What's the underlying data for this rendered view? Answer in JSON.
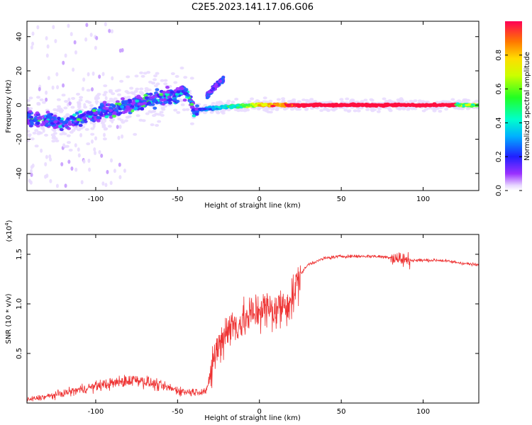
{
  "title": "C2E5.2023.141.17.06.G06",
  "chart_data": [
    {
      "type": "heatmap",
      "xlabel": "Height of straight line (km)",
      "ylabel": "Frequency (Hz)",
      "xlim": [
        -142,
        134
      ],
      "ylim": [
        -50,
        49
      ],
      "xticks": [
        -100,
        -50,
        0,
        50,
        100
      ],
      "yticks": [
        -40,
        -20,
        0,
        20,
        40
      ],
      "colorbar": {
        "label": "Normalized spectral amplitude",
        "range": [
          0,
          1
        ],
        "ticks": [
          "0.0",
          "0.2",
          "0.4",
          "0.6",
          "0.8"
        ],
        "tick_values": [
          0.0,
          0.2,
          0.4,
          0.6,
          0.8
        ]
      },
      "ridge": [
        {
          "x": -140,
          "y": -8
        },
        {
          "x": -120,
          "y": -11
        },
        {
          "x": -100,
          "y": -5
        },
        {
          "x": -80,
          "y": 0
        },
        {
          "x": -60,
          "y": 4
        },
        {
          "x": -45,
          "y": 8
        },
        {
          "x": -40,
          "y": -3
        },
        {
          "x": -30,
          "y": -2
        },
        {
          "x": -20,
          "y": -1
        },
        {
          "x": 0,
          "y": 0
        },
        {
          "x": 50,
          "y": 0
        },
        {
          "x": 100,
          "y": 0
        },
        {
          "x": 134,
          "y": 0
        }
      ],
      "branch": [
        {
          "x": -32,
          "y": 5
        },
        {
          "x": -28,
          "y": 10
        },
        {
          "x": -22,
          "y": 15
        }
      ]
    },
    {
      "type": "line",
      "xlabel": "Height of straight line (km)",
      "ylabel": "SNR (10 * v/v)",
      "multiplier": "(x10",
      "multiplier_exp": "4",
      "multiplier_close": ")",
      "xlim": [
        -142,
        134
      ],
      "ylim": [
        0,
        1.7
      ],
      "xticks": [
        -100,
        -50,
        0,
        50,
        100
      ],
      "yticks": [
        0.5,
        1.0,
        1.5
      ],
      "ytick_labels": [
        "0.5",
        "1.0",
        "1.5"
      ],
      "color": "#ee3333",
      "series": [
        {
          "envelope": [
            {
              "x": -142,
              "y": 0.03
            },
            {
              "x": -125,
              "y": 0.08
            },
            {
              "x": -100,
              "y": 0.17
            },
            {
              "x": -75,
              "y": 0.24
            },
            {
              "x": -60,
              "y": 0.17
            },
            {
              "x": -45,
              "y": 0.11
            },
            {
              "x": -32,
              "y": 0.12
            },
            {
              "x": -28,
              "y": 0.45
            },
            {
              "x": -20,
              "y": 0.75
            },
            {
              "x": -10,
              "y": 0.82
            },
            {
              "x": 0,
              "y": 0.95
            },
            {
              "x": 10,
              "y": 0.93
            },
            {
              "x": 20,
              "y": 1.05
            },
            {
              "x": 25,
              "y": 1.3
            },
            {
              "x": 30,
              "y": 1.4
            },
            {
              "x": 40,
              "y": 1.46
            },
            {
              "x": 50,
              "y": 1.48
            },
            {
              "x": 70,
              "y": 1.48
            },
            {
              "x": 80,
              "y": 1.47
            },
            {
              "x": 90,
              "y": 1.44
            },
            {
              "x": 110,
              "y": 1.44
            },
            {
              "x": 134,
              "y": 1.39
            }
          ]
        }
      ]
    }
  ]
}
